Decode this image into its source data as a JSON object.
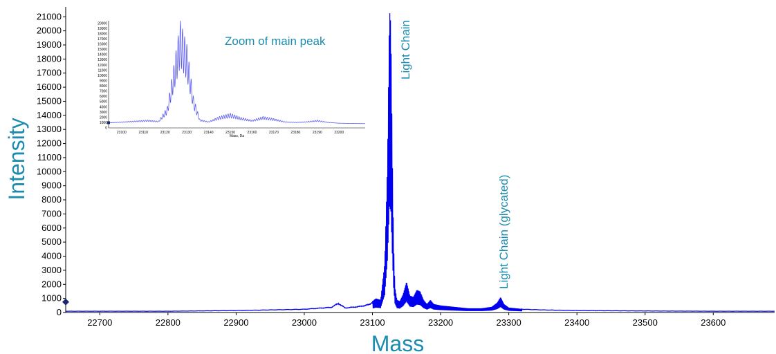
{
  "chart_data": [
    {
      "type": "line",
      "title": "",
      "xlabel": "Mass",
      "ylabel": "Intensity",
      "xlim": [
        22650,
        23690
      ],
      "ylim": [
        0,
        21700
      ],
      "xticks": [
        22700,
        22800,
        22900,
        23000,
        23100,
        23200,
        23300,
        23400,
        23500,
        23600
      ],
      "yticks": [
        0,
        1000,
        2000,
        3000,
        4000,
        5000,
        6000,
        7000,
        8000,
        9000,
        10000,
        11000,
        12000,
        13000,
        14000,
        15000,
        16000,
        17000,
        18000,
        19000,
        20000,
        21000
      ],
      "grid": false,
      "line_color": "#0000ee",
      "series": [
        {
          "x": [
            22650,
            22700,
            22800,
            22900,
            22950,
            23000,
            23040,
            23050,
            23060,
            23080,
            23095,
            23105,
            23112,
            23118,
            23122,
            23125,
            23127,
            23129,
            23131,
            23133,
            23136,
            23140,
            23145,
            23150,
            23155,
            23160,
            23165,
            23170,
            23175,
            23180,
            23185,
            23190,
            23200,
            23210,
            23220,
            23240,
            23260,
            23275,
            23283,
            23288,
            23293,
            23300,
            23320,
            23350,
            23400,
            23500,
            23600,
            23690
          ],
          "y": [
            100,
            100,
            100,
            150,
            200,
            250,
            400,
            700,
            350,
            450,
            600,
            1000,
            900,
            3500,
            10500,
            21500,
            20500,
            12000,
            5000,
            1800,
            900,
            800,
            1300,
            2200,
            1200,
            1100,
            1600,
            1500,
            900,
            600,
            900,
            600,
            500,
            450,
            400,
            300,
            300,
            400,
            700,
            1100,
            600,
            350,
            250,
            200,
            150,
            120,
            100,
            100
          ]
        }
      ],
      "annotations": [
        {
          "text": "Light Chain",
          "x": 23127
        },
        {
          "text": "Light Chain (glycated)",
          "x": 23288
        }
      ]
    },
    {
      "type": "line",
      "title": "Zoom of main peak",
      "xlabel": "Mass, Da",
      "xlim": [
        23094,
        23212
      ],
      "ylim": [
        0,
        20500
      ],
      "xticks": [
        23100,
        23110,
        23120,
        23130,
        23140,
        23150,
        23160,
        23170,
        23180,
        23190,
        23200
      ],
      "yticks": [
        0,
        1000,
        2000,
        3000,
        4000,
        5000,
        6000,
        7000,
        8000,
        9000,
        10000,
        11000,
        12000,
        13000,
        14000,
        15000,
        16000,
        17000,
        18000,
        19000,
        20000
      ],
      "line_color": "#5a5aee",
      "series": [
        {
          "x": [
            23094,
            23105,
            23112,
            23117,
            23121,
            23124,
            23127,
            23130,
            23133,
            23136,
            23140,
            23145,
            23150,
            23155,
            23160,
            23165,
            23170,
            23175,
            23180,
            23185,
            23190,
            23195,
            23200,
            23212
          ],
          "y": [
            1000,
            1300,
            1500,
            1300,
            4000,
            12000,
            20500,
            16000,
            6000,
            1600,
            1200,
            2200,
            2800,
            2000,
            1500,
            2200,
            1800,
            1200,
            1100,
            1200,
            1500,
            1100,
            900,
            800
          ]
        }
      ]
    }
  ]
}
